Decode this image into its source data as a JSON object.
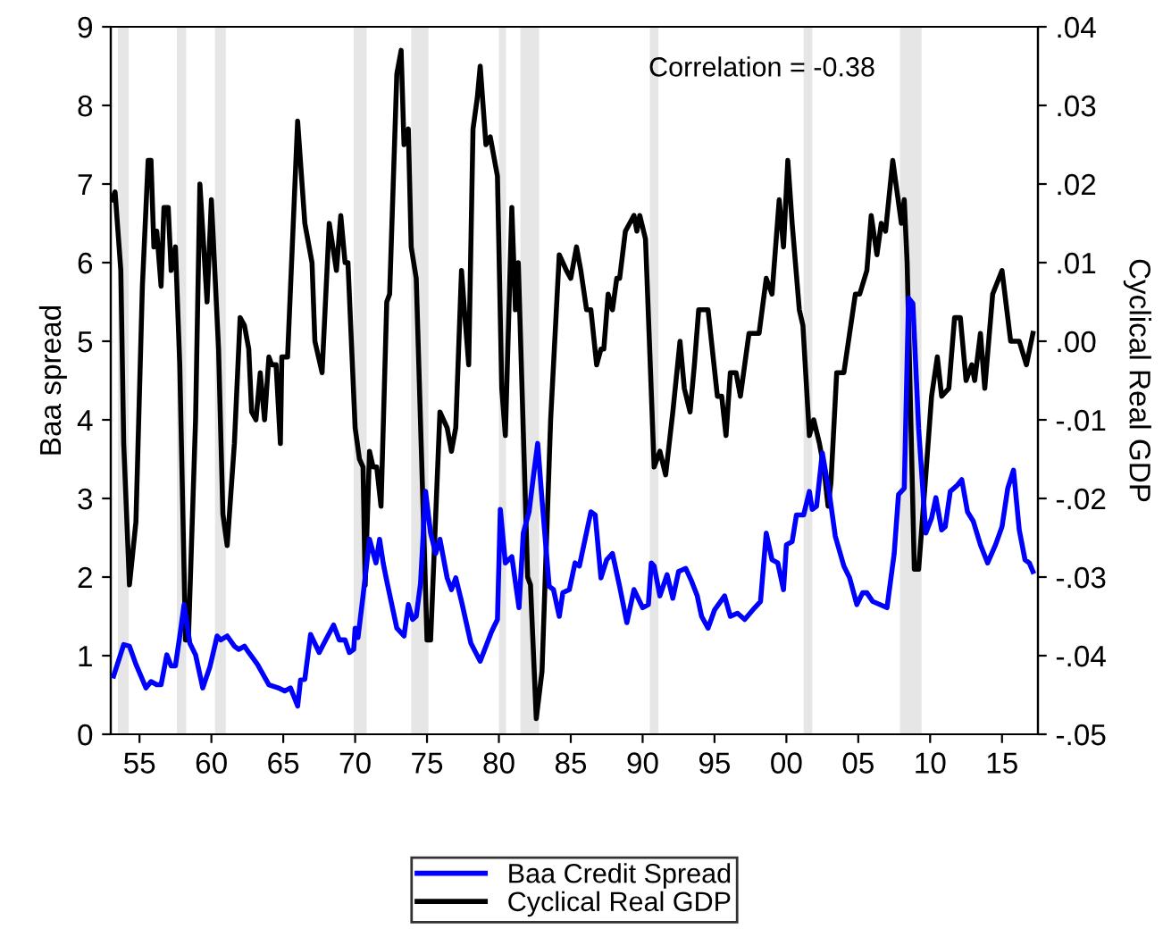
{
  "chart_data": {
    "type": "line",
    "ylabel": "Baa spread",
    "y2label": "Cyclical Real GDP",
    "annotations": [
      "Correlation = -0.38"
    ],
    "xlim": [
      1953.0,
      2017.5
    ],
    "xticks": [
      {
        "value": 1955,
        "label": "55"
      },
      {
        "value": 1960,
        "label": "60"
      },
      {
        "value": 1965,
        "label": "65"
      },
      {
        "value": 1970,
        "label": "70"
      },
      {
        "value": 1975,
        "label": "75"
      },
      {
        "value": 1980,
        "label": "80"
      },
      {
        "value": 1985,
        "label": "85"
      },
      {
        "value": 1990,
        "label": "90"
      },
      {
        "value": 1995,
        "label": "95"
      },
      {
        "value": 2000,
        "label": "00"
      },
      {
        "value": 2005,
        "label": "05"
      },
      {
        "value": 2010,
        "label": "10"
      },
      {
        "value": 2015,
        "label": "15"
      }
    ],
    "ylim": [
      0,
      9
    ],
    "yticks": [
      0,
      1,
      2,
      3,
      4,
      5,
      6,
      7,
      8,
      9
    ],
    "y2lim": [
      -0.05,
      0.04
    ],
    "y2ticks": [
      {
        "value": -0.05,
        "label": "-.05"
      },
      {
        "value": -0.04,
        "label": "-.04"
      },
      {
        "value": -0.03,
        "label": "-.03"
      },
      {
        "value": -0.02,
        "label": "-.02"
      },
      {
        "value": -0.01,
        "label": "-.01"
      },
      {
        "value": 0.0,
        "label": ".00"
      },
      {
        "value": 0.01,
        "label": ".01"
      },
      {
        "value": 0.02,
        "label": ".02"
      },
      {
        "value": 0.03,
        "label": ".03"
      },
      {
        "value": 0.04,
        "label": ".04"
      }
    ],
    "bands": [
      {
        "axis": "x",
        "from": 1953.5,
        "to": 1954.25,
        "color": "#e6e6e6"
      },
      {
        "axis": "x",
        "from": 1957.6,
        "to": 1958.25,
        "color": "#e6e6e6"
      },
      {
        "axis": "x",
        "from": 1960.25,
        "to": 1961.0,
        "color": "#e6e6e6"
      },
      {
        "axis": "x",
        "from": 1969.9,
        "to": 1970.8,
        "color": "#e6e6e6"
      },
      {
        "axis": "x",
        "from": 1973.9,
        "to": 1975.1,
        "color": "#e6e6e6"
      },
      {
        "axis": "x",
        "from": 1980.0,
        "to": 1980.5,
        "color": "#e6e6e6"
      },
      {
        "axis": "x",
        "from": 1981.5,
        "to": 1982.8,
        "color": "#e6e6e6"
      },
      {
        "axis": "x",
        "from": 1990.5,
        "to": 1991.1,
        "color": "#e6e6e6"
      },
      {
        "axis": "x",
        "from": 2001.2,
        "to": 2001.8,
        "color": "#e6e6e6"
      },
      {
        "axis": "x",
        "from": 2007.9,
        "to": 2009.4,
        "color": "#e6e6e6"
      }
    ],
    "grid": false,
    "legend": "bottom",
    "marker": "none",
    "line_style": "solid",
    "series": [
      {
        "name": "Baa Credit Spread",
        "color": "#0000ff",
        "x": [
          1953.2,
          1953.9,
          1954.3,
          1954.75,
          1955.45,
          1955.8,
          1956.2,
          1956.5,
          1956.9,
          1957.2,
          1957.5,
          1957.85,
          1958.1,
          1958.5,
          1958.9,
          1959.4,
          1959.9,
          1960.4,
          1960.65,
          1961.1,
          1961.6,
          1961.9,
          1962.3,
          1962.6,
          1963.2,
          1964.0,
          1964.65,
          1965.1,
          1965.5,
          1966.0,
          1966.2,
          1966.5,
          1966.9,
          1967.5,
          1967.95,
          1968.5,
          1968.9,
          1969.3,
          1969.6,
          1969.9,
          1970.0,
          1970.2,
          1970.55,
          1971.0,
          1971.45,
          1971.7,
          1971.95,
          1972.2,
          1972.9,
          1973.4,
          1973.7,
          1974.0,
          1974.25,
          1974.55,
          1974.9,
          1975.25,
          1975.6,
          1975.9,
          1976.4,
          1976.7,
          1977.0,
          1977.4,
          1978.05,
          1978.7,
          1979.1,
          1979.5,
          1979.9,
          1980.1,
          1980.45,
          1980.9,
          1981.4,
          1981.7,
          1982.1,
          1982.4,
          1982.7,
          1983.0,
          1983.5,
          1983.8,
          1984.2,
          1984.45,
          1984.9,
          1985.3,
          1985.6,
          1986.4,
          1986.7,
          1987.1,
          1987.5,
          1987.9,
          1988.4,
          1988.9,
          1989.4,
          1990.0,
          1990.4,
          1990.6,
          1990.8,
          1991.2,
          1991.7,
          1992.1,
          1992.5,
          1993.0,
          1993.4,
          1993.8,
          1994.1,
          1994.55,
          1995.0,
          1995.7,
          1996.1,
          1996.6,
          1997.1,
          1997.8,
          1998.2,
          1998.6,
          1999.0,
          1999.4,
          1999.8,
          2000.0,
          2000.4,
          2000.7,
          2001.2,
          2001.6,
          2001.8,
          2002.1,
          2002.5,
          2003.0,
          2003.4,
          2004.0,
          2004.4,
          2004.9,
          2005.3,
          2005.6,
          2006.0,
          2006.5,
          2007.0,
          2007.5,
          2007.8,
          2008.2,
          2008.5,
          2008.8,
          2009.2,
          2009.7,
          2010.1,
          2010.4,
          2010.8,
          2011.05,
          2011.4,
          2011.9,
          2012.2,
          2012.6,
          2013.0,
          2013.5,
          2014.0,
          2014.55,
          2015.0,
          2015.4,
          2015.8,
          2016.2,
          2016.6,
          2016.9,
          2017.15
        ],
        "values": [
          0.74,
          1.14,
          1.12,
          0.89,
          0.59,
          0.67,
          0.63,
          0.63,
          1.01,
          0.87,
          0.87,
          1.31,
          1.65,
          1.16,
          1.01,
          0.59,
          0.86,
          1.25,
          1.2,
          1.25,
          1.12,
          1.08,
          1.12,
          1.04,
          0.89,
          0.63,
          0.59,
          0.55,
          0.59,
          0.36,
          0.69,
          0.7,
          1.27,
          1.04,
          1.2,
          1.39,
          1.2,
          1.2,
          1.04,
          1.08,
          1.35,
          1.23,
          1.76,
          2.48,
          2.18,
          2.48,
          2.18,
          1.95,
          1.35,
          1.25,
          1.65,
          1.46,
          1.5,
          1.92,
          3.09,
          2.56,
          2.3,
          2.48,
          1.99,
          1.84,
          1.99,
          1.69,
          1.16,
          0.93,
          1.12,
          1.31,
          1.46,
          2.86,
          2.18,
          2.26,
          1.61,
          2.56,
          2.83,
          3.28,
          3.7,
          2.98,
          1.88,
          1.84,
          1.5,
          1.8,
          1.84,
          2.18,
          2.14,
          2.83,
          2.79,
          1.99,
          2.22,
          2.3,
          1.88,
          1.42,
          1.84,
          1.61,
          1.65,
          2.18,
          2.14,
          1.76,
          2.03,
          1.73,
          2.07,
          2.11,
          1.95,
          1.76,
          1.5,
          1.35,
          1.58,
          1.76,
          1.5,
          1.54,
          1.46,
          1.61,
          1.69,
          2.56,
          2.22,
          2.18,
          1.84,
          2.41,
          2.45,
          2.79,
          2.79,
          3.09,
          2.86,
          2.9,
          3.58,
          3.05,
          2.52,
          2.14,
          1.99,
          1.65,
          1.8,
          1.8,
          1.69,
          1.65,
          1.61,
          2.3,
          3.05,
          3.13,
          5.55,
          5.48,
          3.89,
          2.56,
          2.75,
          3.01,
          2.6,
          2.64,
          3.09,
          3.17,
          3.24,
          2.83,
          2.71,
          2.41,
          2.18,
          2.41,
          2.64,
          3.13,
          3.36,
          2.6,
          2.22,
          2.18,
          2.07
        ]
      },
      {
        "name": "Cyclical Real GDP",
        "color": "#000000",
        "axis": "y2",
        "x": [
          1953.1,
          1953.3,
          1953.7,
          1953.9,
          1954.3,
          1954.75,
          1955.2,
          1955.6,
          1955.8,
          1956.0,
          1956.2,
          1956.5,
          1956.7,
          1957.0,
          1957.2,
          1957.5,
          1957.8,
          1958.2,
          1958.4,
          1958.9,
          1959.2,
          1959.7,
          1960.0,
          1960.5,
          1960.8,
          1961.1,
          1961.6,
          1962.0,
          1962.3,
          1962.6,
          1962.8,
          1963.1,
          1963.4,
          1963.7,
          1964.0,
          1964.2,
          1964.5,
          1964.8,
          1964.9,
          1965.3,
          1966.0,
          1966.5,
          1967.0,
          1967.2,
          1967.7,
          1968.2,
          1968.7,
          1969.0,
          1969.3,
          1969.5,
          1970.0,
          1970.3,
          1970.55,
          1970.7,
          1971.0,
          1971.25,
          1971.5,
          1971.8,
          1972.2,
          1972.4,
          1972.9,
          1973.2,
          1973.4,
          1973.7,
          1973.9,
          1974.25,
          1975.0,
          1975.25,
          1975.9,
          1976.4,
          1976.7,
          1977.0,
          1977.4,
          1977.6,
          1977.9,
          1978.2,
          1978.5,
          1978.7,
          1979.1,
          1979.4,
          1979.9,
          1980.2,
          1980.45,
          1980.9,
          1981.15,
          1981.35,
          1982.0,
          1982.2,
          1982.6,
          1983.0,
          1983.6,
          1984.2,
          1984.45,
          1984.7,
          1985.0,
          1985.4,
          1985.7,
          1986.1,
          1986.4,
          1986.8,
          1987.1,
          1987.3,
          1987.6,
          1987.9,
          1988.2,
          1988.4,
          1988.8,
          1989.1,
          1989.4,
          1989.6,
          1989.8,
          1990.2,
          1990.8,
          1991.2,
          1991.6,
          1992.1,
          1992.6,
          1992.9,
          1993.3,
          1993.6,
          1993.9,
          1994.3,
          1994.55,
          1995.2,
          1995.5,
          1995.8,
          1996.1,
          1996.5,
          1996.8,
          1997.4,
          1997.65,
          1998.1,
          1998.6,
          1999.0,
          1999.5,
          1999.8,
          2000.1,
          2000.4,
          2000.9,
          2001.15,
          2001.6,
          2001.9,
          2002.3,
          2002.6,
          2002.9,
          2003.1,
          2003.5,
          2004.0,
          2004.8,
          2005.1,
          2005.6,
          2005.9,
          2006.3,
          2006.6,
          2006.9,
          2007.4,
          2008.0,
          2008.2,
          2008.4,
          2008.9,
          2009.2,
          2009.7,
          2010.1,
          2010.5,
          2010.8,
          2011.3,
          2011.7,
          2012.1,
          2012.5,
          2012.9,
          2013.1,
          2013.5,
          2013.8,
          2014.35,
          2015.0,
          2015.6,
          2016.2,
          2016.7,
          2017.15
        ],
        "values": [
          0.018,
          0.019,
          0.009,
          -0.013,
          -0.031,
          -0.023,
          0.007,
          0.023,
          0.023,
          0.012,
          0.014,
          0.007,
          0.017,
          0.017,
          0.009,
          0.012,
          -0.003,
          -0.038,
          -0.038,
          -0.01,
          0.02,
          0.005,
          0.018,
          -0.001,
          -0.022,
          -0.026,
          -0.013,
          0.003,
          0.002,
          -0.001,
          -0.009,
          -0.01,
          -0.004,
          -0.01,
          -0.002,
          -0.003,
          -0.003,
          -0.013,
          -0.002,
          -0.002,
          0.028,
          0.015,
          0.01,
          0.0,
          -0.004,
          0.015,
          0.009,
          0.016,
          0.01,
          0.01,
          -0.011,
          -0.015,
          -0.016,
          -0.031,
          -0.014,
          -0.016,
          -0.016,
          -0.021,
          0.005,
          0.006,
          0.034,
          0.037,
          0.025,
          0.027,
          0.012,
          0.008,
          -0.038,
          -0.038,
          -0.009,
          -0.011,
          -0.014,
          -0.011,
          0.009,
          0.004,
          -0.003,
          0.027,
          0.031,
          0.035,
          0.025,
          0.026,
          0.021,
          -0.006,
          -0.012,
          0.017,
          0.004,
          0.01,
          -0.03,
          -0.031,
          -0.048,
          -0.042,
          -0.01,
          0.011,
          0.01,
          0.009,
          0.008,
          0.012,
          0.009,
          0.004,
          0.004,
          -0.003,
          -0.001,
          -0.001,
          0.006,
          0.004,
          0.008,
          0.008,
          0.014,
          0.015,
          0.016,
          0.014,
          0.016,
          0.013,
          -0.016,
          -0.014,
          -0.017,
          -0.009,
          0.0,
          -0.006,
          -0.009,
          -0.003,
          0.004,
          0.004,
          0.004,
          -0.007,
          -0.007,
          -0.012,
          -0.004,
          -0.004,
          -0.007,
          0.001,
          0.001,
          0.001,
          0.008,
          0.006,
          0.018,
          0.012,
          0.023,
          0.015,
          0.004,
          0.002,
          -0.012,
          -0.01,
          -0.013,
          -0.016,
          -0.021,
          -0.018,
          -0.004,
          -0.004,
          0.006,
          0.006,
          0.009,
          0.016,
          0.011,
          0.015,
          0.014,
          0.023,
          0.015,
          0.018,
          0.01,
          -0.029,
          -0.029,
          -0.017,
          -0.007,
          -0.002,
          -0.007,
          -0.006,
          0.003,
          0.003,
          -0.005,
          -0.003,
          -0.005,
          0.001,
          -0.006,
          0.006,
          0.009,
          0.0,
          0.0,
          -0.003,
          0.001
        ]
      }
    ]
  }
}
